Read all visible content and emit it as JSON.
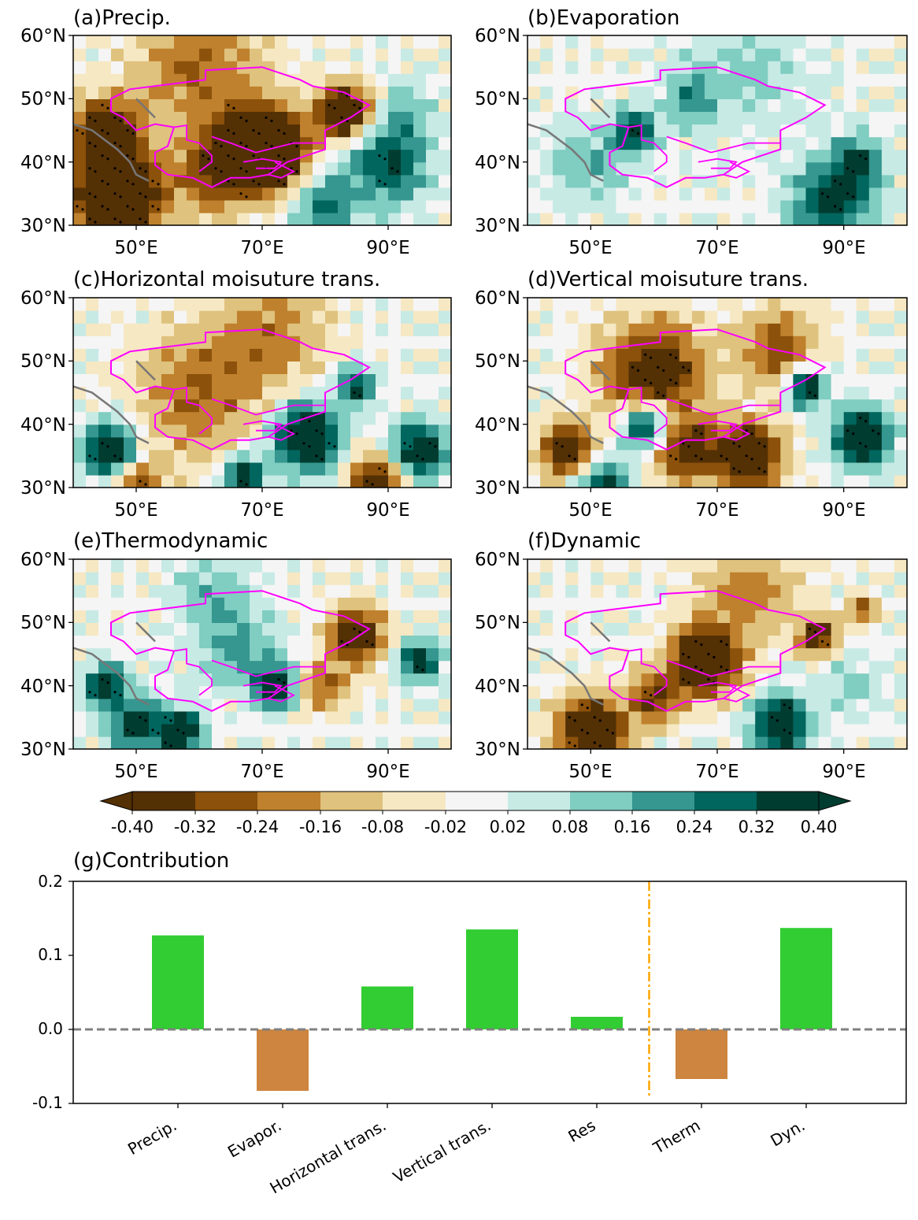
{
  "colors": {
    "palette": [
      "#543005",
      "#8c510a",
      "#bf812d",
      "#dfc27d",
      "#f6e8c3",
      "#f5f5f5",
      "#c7eae5",
      "#80cdc1",
      "#35978f",
      "#01665e",
      "#003c30"
    ],
    "border": "#ff00ff",
    "coast": "#777777",
    "positive": "#32cd32",
    "negative": "#cd853f",
    "divider": "#ffa500",
    "zero_line": "#808080"
  },
  "maps": {
    "lon_ticks": [
      "50°E",
      "70°E",
      "90°E"
    ],
    "lat_ticks": [
      "60°N",
      "50°N",
      "40°N",
      "30°N"
    ],
    "panels": [
      {
        "id": "a",
        "title": "(a)Precip.",
        "style": "precip"
      },
      {
        "id": "b",
        "title": "(b)Evaporation",
        "style": "evap"
      },
      {
        "id": "c",
        "title": "(c)Horizontal moisuture trans.",
        "style": "horiz"
      },
      {
        "id": "d",
        "title": "(d)Vertical moisuture trans.",
        "style": "vert"
      },
      {
        "id": "e",
        "title": "(e)Thermodynamic",
        "style": "therm"
      },
      {
        "id": "f",
        "title": "(f)Dynamic",
        "style": "dyn"
      }
    ]
  },
  "colorbar": {
    "ticks": [
      "-0.40",
      "-0.32",
      "-0.24",
      "-0.16",
      "-0.08",
      "-0.02",
      "0.02",
      "0.08",
      "0.16",
      "0.24",
      "0.32",
      "0.40"
    ]
  },
  "chart_data": {
    "type": "bar",
    "title": "(g)Contribution",
    "categories": [
      "Precip.",
      "Evapor.",
      "Horizontal trans.",
      "Vertical trans.",
      "Res",
      "Therm",
      "Dyn."
    ],
    "values": [
      0.127,
      -0.083,
      0.058,
      0.135,
      0.017,
      -0.067,
      0.137
    ],
    "ylim": [
      -0.1,
      0.2
    ],
    "ytick_labels": [
      "0.2",
      "0.1",
      "0.0",
      "-0.1"
    ],
    "xlabel": "",
    "ylabel": "",
    "divider_between": [
      "Res",
      "Therm"
    ]
  }
}
